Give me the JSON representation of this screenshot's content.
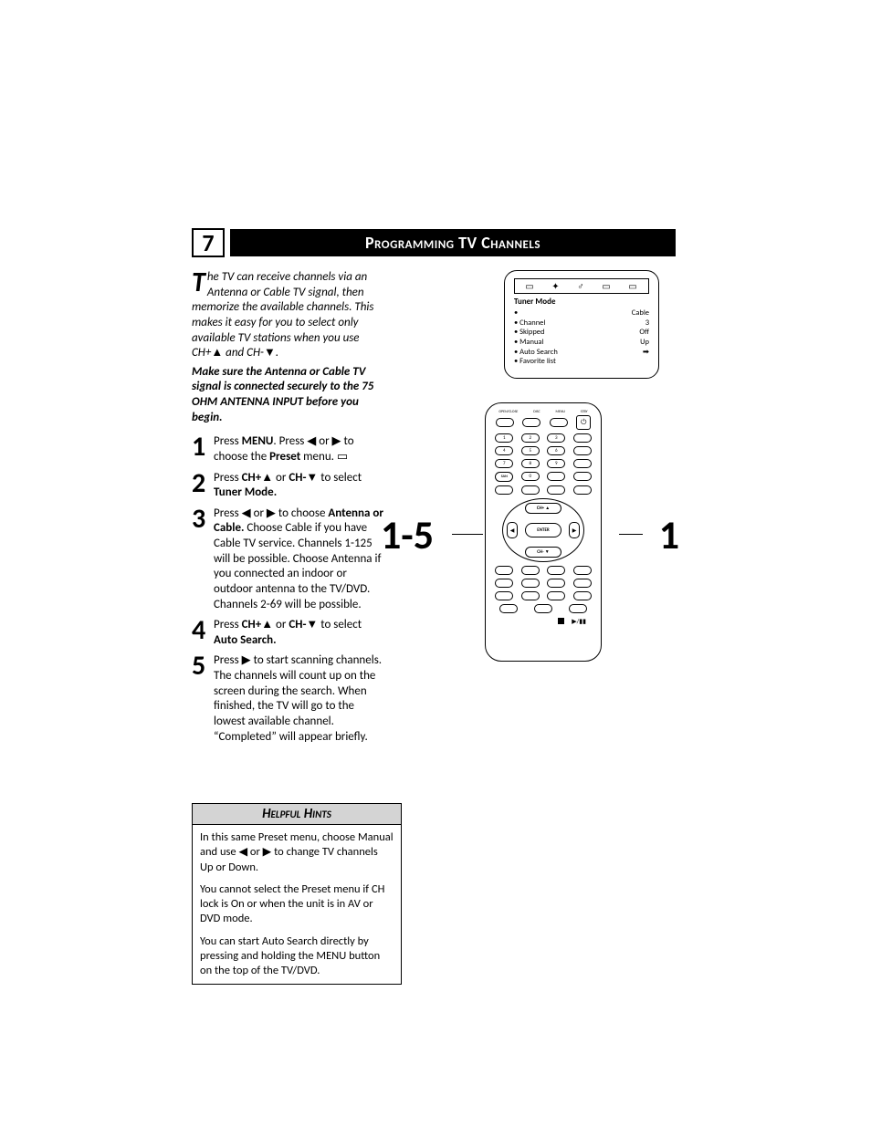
{
  "page_number": "7",
  "title": "Programming TV Channels",
  "intro": {
    "dropcap": "T",
    "text": "he TV can receive channels via an Antenna or Cable TV signal, then memorize the available channels. This makes it easy for you to select only available TV stations when you use CH+▲ and CH-▼.",
    "bold": "Make sure the Antenna or Cable TV signal is connected securely to the 75 OHM ANTENNA INPUT before you begin."
  },
  "steps": [
    {
      "num": "1",
      "html": "Press <b>MENU</b>. Press ◀ or ▶ to choose the <b>Preset</b> menu. ▭"
    },
    {
      "num": "2",
      "html": "Press <b>CH+▲</b> or <b>CH-▼</b> to select <b>Tuner Mode.</b>"
    },
    {
      "num": "3",
      "html": "Press ◀ or ▶ to choose <b>Antenna or Cable.</b> Choose Cable if you have Cable TV service. Channels 1-125 will be possible. Choose Antenna if you connected an indoor or outdoor antenna to the TV/DVD. Channels 2-69 will be possible."
    },
    {
      "num": "4",
      "html": "Press <b>CH+▲</b> or <b>CH-▼</b> to select <b>Auto Search.</b>"
    },
    {
      "num": "5",
      "html": "Press ▶ to start scanning channels. The channels will count up on the screen during the search. When finished, the TV will go to the lowest available channel. “Completed” will appear briefly."
    }
  ],
  "osd": {
    "title": "Tuner Mode",
    "rows": [
      {
        "l": "•",
        "r": "Cable"
      },
      {
        "l": "• Channel",
        "r": "3"
      },
      {
        "l": "• Skipped",
        "r": "Off"
      },
      {
        "l": "• Manual",
        "r": "Up"
      },
      {
        "l": "• Auto Search",
        "r": "➡"
      },
      {
        "l": "• Favorite list",
        "r": ""
      }
    ]
  },
  "remote_labels": {
    "left_callout": "1-5",
    "right_callout": "1",
    "enter": "ENTER",
    "ch_up": "CH+ ▲",
    "ch_down": "CH- ▼",
    "san": "SAN"
  },
  "hints": {
    "title": "Helpful Hints",
    "paras": [
      "In this same Preset menu, choose Manual and use ◀ or ▶ to change TV channels Up or Down.",
      "You cannot select the Preset menu if CH lock is On or when the unit is in AV or DVD mode.",
      "You can start Auto Search directly by pressing and holding the MENU button on the top of the TV/DVD."
    ]
  }
}
